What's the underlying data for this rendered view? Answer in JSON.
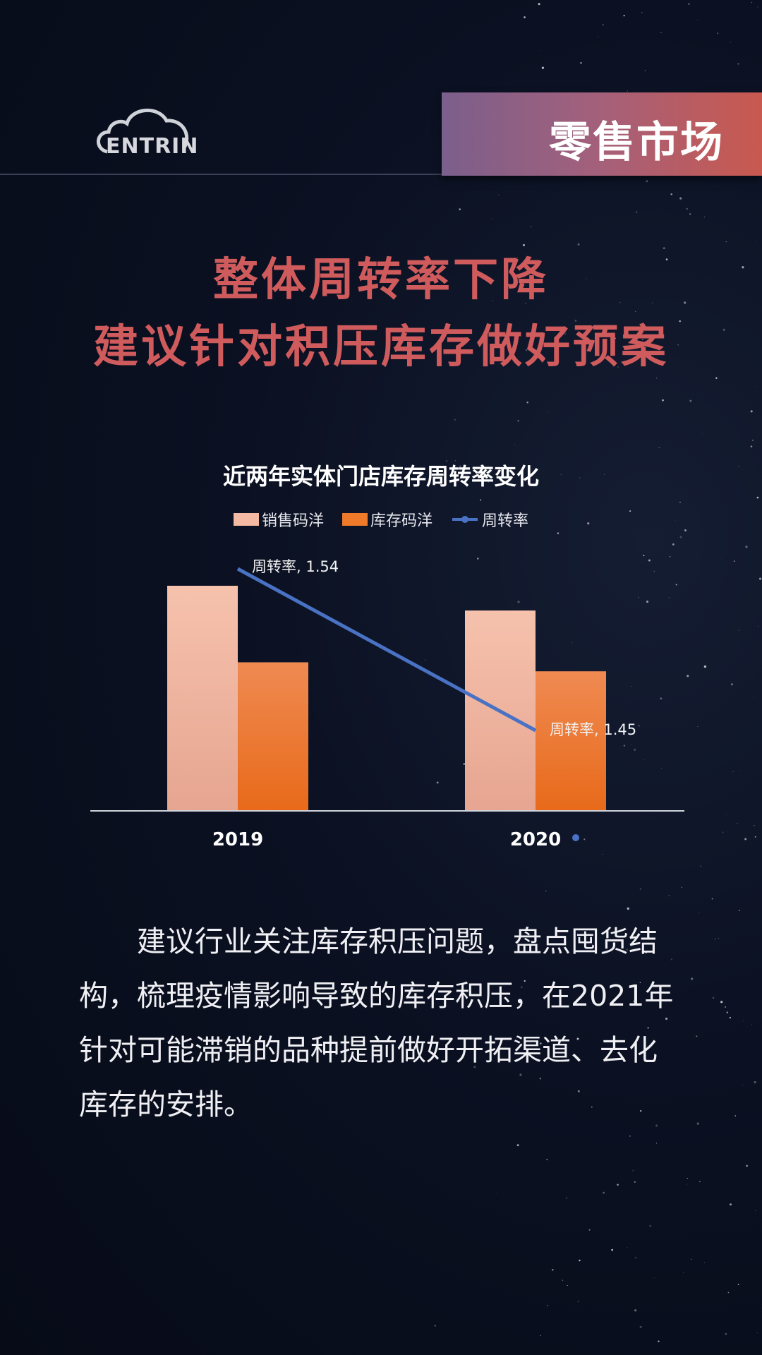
{
  "header": {
    "logo_text": "CENTRIN",
    "section_badge": "零售市场"
  },
  "headline": {
    "line1": "整体周转率下降",
    "line2": "建议针对积压库存做好预案"
  },
  "colors": {
    "background": "#0b1122",
    "headline": "#cf5b5d",
    "sales_bar": "#f4b9a2",
    "stock_bar": "#ef7a2a",
    "line": "#4a72c4"
  },
  "chart_data": {
    "type": "bar",
    "title": "近两年实体门店库存周转率变化",
    "categories": [
      "2019",
      "2020"
    ],
    "series": [
      {
        "name": "销售码洋",
        "type": "bar",
        "values": [
          100,
          89
        ]
      },
      {
        "name": "库存码洋",
        "type": "bar",
        "values": [
          66,
          62
        ]
      },
      {
        "name": "周转率",
        "type": "line",
        "values": [
          1.54,
          1.45
        ],
        "data_labels": [
          "周转率, 1.54",
          "周转率, 1.45"
        ]
      }
    ],
    "ylim": [
      0,
      100
    ],
    "legend": "top",
    "grid": false,
    "y_axis_visible": false
  },
  "paragraph": {
    "lines": [
      "建议行业关注库存积压问题，盘点囤货结",
      "构，梳理疫情影响导致的库存积压，在2021年",
      "针对可能滞销的品种提前做好开拓渠道、去化",
      "库存的安排。"
    ]
  }
}
